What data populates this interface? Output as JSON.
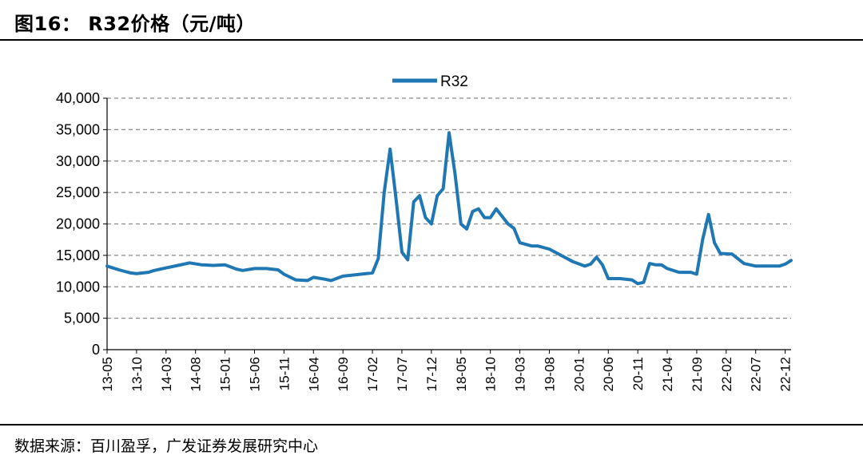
{
  "figure": {
    "title": "图16： R32价格（元/吨）",
    "source": "数据来源：百川盈孚，广发证券发展研究中心"
  },
  "chart_data": {
    "type": "line",
    "title": "",
    "xlabel": "",
    "ylabel": "",
    "ylim": [
      0,
      40000
    ],
    "yticks": [
      0,
      5000,
      10000,
      15000,
      20000,
      25000,
      30000,
      35000,
      40000
    ],
    "ytick_labels": [
      "0",
      "5,000",
      "10,000",
      "15,000",
      "20,000",
      "25,000",
      "30,000",
      "35,000",
      "40,000"
    ],
    "xtick_labels": [
      "13-05",
      "13-10",
      "14-03",
      "14-08",
      "15-01",
      "15-06",
      "15-11",
      "16-04",
      "16-09",
      "17-02",
      "17-07",
      "17-12",
      "18-05",
      "18-10",
      "19-03",
      "19-08",
      "20-01",
      "20-06",
      "20-11",
      "21-04",
      "21-09",
      "22-02",
      "22-07",
      "22-12"
    ],
    "grid": "horizontal dashed",
    "legend_position": "top-center",
    "series_color": "#1F77B4",
    "series": [
      {
        "name": "R32",
        "x": [
          "13-05",
          "13-07",
          "13-09",
          "13-10",
          "13-12",
          "14-01",
          "14-03",
          "14-05",
          "14-07",
          "14-09",
          "14-11",
          "15-01",
          "15-03",
          "15-04",
          "15-06",
          "15-08",
          "15-10",
          "15-11",
          "16-01",
          "16-03",
          "16-04",
          "16-06",
          "16-07",
          "16-09",
          "16-10",
          "16-12",
          "17-02",
          "17-03",
          "17-04",
          "17-05",
          "17-06",
          "17-07",
          "17-08",
          "17-09",
          "17-10",
          "17-11",
          "17-12",
          "18-01",
          "18-02",
          "18-03",
          "18-04",
          "18-05",
          "18-06",
          "18-07",
          "18-08",
          "18-09",
          "18-10",
          "18-11",
          "19-01",
          "19-02",
          "19-03",
          "19-05",
          "19-06",
          "19-08",
          "19-10",
          "19-12",
          "20-02",
          "20-03",
          "20-04",
          "20-05",
          "20-06",
          "20-08",
          "20-10",
          "20-11",
          "20-12",
          "21-01",
          "21-02",
          "21-03",
          "21-04",
          "21-06",
          "21-08",
          "21-09",
          "21-10",
          "21-11",
          "21-12",
          "22-01",
          "22-03",
          "22-05",
          "22-07",
          "22-09",
          "22-11",
          "22-12",
          "23-01"
        ],
        "values": [
          13300,
          12700,
          12200,
          12100,
          12300,
          12600,
          13000,
          13400,
          13800,
          13500,
          13400,
          13500,
          12800,
          12600,
          12900,
          12900,
          12700,
          12000,
          11100,
          11000,
          11500,
          11200,
          11000,
          11700,
          11800,
          12000,
          12200,
          14500,
          25000,
          31900,
          24000,
          15500,
          14300,
          23500,
          24500,
          21000,
          20000,
          24500,
          25600,
          34500,
          28000,
          20000,
          19200,
          22000,
          22400,
          21000,
          21000,
          22400,
          20000,
          19300,
          17000,
          16500,
          16500,
          16000,
          15000,
          14000,
          13300,
          13600,
          14700,
          13500,
          11300,
          11300,
          11100,
          10500,
          10700,
          13700,
          13500,
          13500,
          12900,
          12300,
          12300,
          12000,
          17500,
          21500,
          17000,
          15300,
          15200,
          13700,
          13300,
          13300,
          13300,
          13600,
          14200
        ]
      }
    ]
  }
}
